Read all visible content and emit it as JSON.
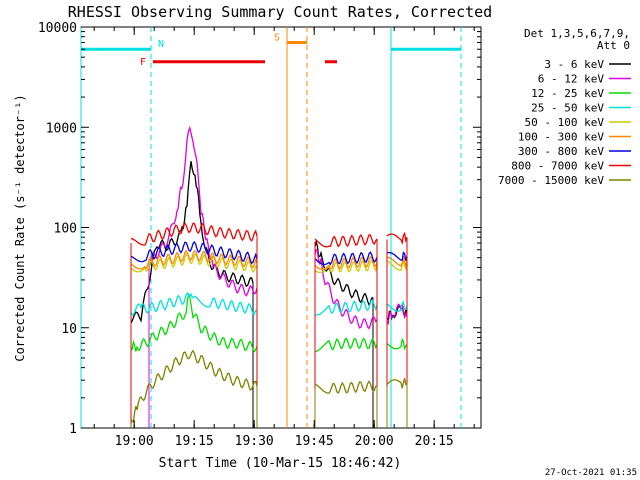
{
  "chart_data": {
    "type": "line",
    "title": "RHESSI Observing Summary Count Rates, Corrected",
    "xlabel": "Start Time (10-Mar-15 18:46:42)",
    "ylabel": "Corrected Count Rate (s⁻¹ detector⁻¹)",
    "yscale": "log",
    "ylim": [
      1,
      10000
    ],
    "xlim_minutes": [
      0,
      100
    ],
    "x_tick_minutes": [
      13.3,
      28.3,
      43.3,
      58.3,
      73.3,
      88.3
    ],
    "x_tick_labels": [
      "19:00",
      "19:15",
      "19:30",
      "19:45",
      "20:00",
      "20:15"
    ],
    "y_ticks": [
      1,
      10,
      100,
      1000,
      10000
    ],
    "y_tick_labels": [
      "1",
      "10",
      "100",
      "1000",
      "10000"
    ],
    "legend_header": [
      "Det 1,3,5,6,7,9,",
      "Att 0"
    ],
    "legend_position": "right",
    "series": [
      {
        "name": "3 - 6 keV",
        "color": "#000000",
        "segments": [
          [
            [
              12.5,
              12.5
            ],
            [
              15,
              13
            ],
            [
              17,
              30
            ],
            [
              19,
              70
            ],
            [
              21,
              65
            ],
            [
              23,
              70
            ],
            [
              25,
              85
            ],
            [
              26.5,
              160
            ],
            [
              27.5,
              450
            ],
            [
              28.5,
              350
            ],
            [
              30,
              120
            ],
            [
              31,
              60
            ],
            [
              33,
              40
            ],
            [
              36,
              33
            ],
            [
              40,
              30
            ],
            [
              43,
              28
            ]
          ],
          [
            [
              58.5,
              70
            ],
            [
              60,
              50
            ],
            [
              62,
              35
            ],
            [
              64,
              28
            ],
            [
              66,
              25
            ],
            [
              68,
              22
            ],
            [
              70,
              20
            ],
            [
              72,
              19
            ],
            [
              73,
              20
            ]
          ],
          [
            [
              76.5,
              13
            ],
            [
              78,
              14
            ],
            [
              80,
              15
            ],
            [
              81.5,
              14
            ]
          ]
        ]
      },
      {
        "name": "6 - 12 keV",
        "color": "#e000e0",
        "segments": [
          [
            [
              17,
              45
            ],
            [
              18,
              50
            ],
            [
              20,
              60
            ],
            [
              22,
              80
            ],
            [
              24,
              150
            ],
            [
              25.5,
              300
            ],
            [
              26.5,
              700
            ],
            [
              27.2,
              1100
            ],
            [
              28,
              800
            ],
            [
              29,
              400
            ],
            [
              30,
              150
            ],
            [
              31.5,
              70
            ],
            [
              33,
              40
            ],
            [
              36,
              30
            ],
            [
              39,
              25
            ],
            [
              42,
              23
            ],
            [
              44,
              25
            ]
          ],
          [
            [
              58.5,
              60
            ],
            [
              60,
              45
            ],
            [
              61,
              30
            ],
            [
              63,
              20
            ],
            [
              65,
              15
            ],
            [
              68,
              12
            ],
            [
              70,
              11
            ],
            [
              72,
              11
            ],
            [
              74,
              12
            ]
          ],
          [
            [
              76.5,
              12
            ],
            [
              78,
              14
            ],
            [
              80,
              16
            ],
            [
              81.5,
              13
            ]
          ]
        ]
      },
      {
        "name": "12 - 25 keV",
        "color": "#00dd00",
        "segments": [
          [
            [
              12.5,
              6.5
            ],
            [
              14,
              6.5
            ],
            [
              16,
              7
            ],
            [
              18,
              8
            ],
            [
              20,
              9
            ],
            [
              22,
              10
            ],
            [
              24,
              12
            ],
            [
              26,
              14
            ],
            [
              27.2,
              22
            ],
            [
              28,
              14
            ],
            [
              30,
              10
            ],
            [
              33,
              8
            ],
            [
              36,
              7
            ],
            [
              39,
              7
            ],
            [
              42,
              6.5
            ],
            [
              44,
              6.5
            ]
          ],
          [
            [
              58.5,
              6.5
            ],
            [
              62,
              6.7
            ],
            [
              66,
              7
            ],
            [
              70,
              7
            ],
            [
              74,
              6.8
            ]
          ],
          [
            [
              76.5,
              6.8
            ],
            [
              80,
              7
            ],
            [
              81.5,
              6.8
            ]
          ]
        ]
      },
      {
        "name": "25 - 50 keV",
        "color": "#00e0e0",
        "segments": [
          [
            [
              12.5,
              15
            ],
            [
              15,
              15.5
            ],
            [
              18,
              16
            ],
            [
              21,
              17
            ],
            [
              24,
              18.5
            ],
            [
              27,
              20
            ],
            [
              27.5,
              24
            ],
            [
              28.5,
              19
            ],
            [
              32,
              18
            ],
            [
              36,
              17
            ],
            [
              40,
              16
            ],
            [
              44,
              15
            ]
          ],
          [
            [
              58.5,
              15
            ],
            [
              62,
              15.5
            ],
            [
              66,
              16
            ],
            [
              70,
              16.5
            ],
            [
              74,
              17
            ]
          ],
          [
            [
              76.5,
              16
            ],
            [
              80,
              16.5
            ],
            [
              81.5,
              16.5
            ]
          ]
        ]
      },
      {
        "name": "50 - 100 keV",
        "color": "#cccc00",
        "segments": [
          [
            [
              12.5,
              40
            ],
            [
              16,
              41
            ],
            [
              20,
              43
            ],
            [
              24,
              46
            ],
            [
              27,
              49
            ],
            [
              30,
              48
            ],
            [
              34,
              45
            ],
            [
              38,
              43
            ],
            [
              42,
              41
            ],
            [
              44,
              40
            ]
          ],
          [
            [
              58.5,
              40
            ],
            [
              62,
              40
            ],
            [
              66,
              40.5
            ],
            [
              70,
              41
            ],
            [
              74,
              42
            ]
          ],
          [
            [
              76.5,
              42
            ],
            [
              80,
              42
            ],
            [
              81.5,
              43
            ]
          ]
        ]
      },
      {
        "name": "100 - 300 keV",
        "color": "#ff8800",
        "segments": [
          [
            [
              12.5,
              42
            ],
            [
              16,
              44
            ],
            [
              20,
              47
            ],
            [
              24,
              50
            ],
            [
              27,
              53
            ],
            [
              30,
              52
            ],
            [
              34,
              49
            ],
            [
              38,
              47
            ],
            [
              42,
              45
            ],
            [
              44,
              44
            ]
          ],
          [
            [
              58.5,
              43
            ],
            [
              62,
              43
            ],
            [
              66,
              44
            ],
            [
              70,
              45
            ],
            [
              74,
              46
            ]
          ],
          [
            [
              76.5,
              45
            ],
            [
              80,
              46
            ],
            [
              81.5,
              46
            ]
          ]
        ]
      },
      {
        "name": "300 - 800 keV",
        "color": "#0000dd",
        "segments": [
          [
            [
              12.5,
              48
            ],
            [
              16,
              52
            ],
            [
              20,
              57
            ],
            [
              24,
              62
            ],
            [
              27,
              65
            ],
            [
              30,
              63
            ],
            [
              34,
              58
            ],
            [
              38,
              54
            ],
            [
              42,
              50
            ],
            [
              44,
              48
            ]
          ],
          [
            [
              58.5,
              48
            ],
            [
              62,
              48
            ],
            [
              66,
              49
            ],
            [
              70,
              50
            ],
            [
              74,
              51
            ]
          ],
          [
            [
              76.5,
              50
            ],
            [
              80,
              51
            ],
            [
              81.5,
              52
            ]
          ]
        ]
      },
      {
        "name": "800 - 7000 keV",
        "color": "#ee0000",
        "segments": [
          [
            [
              12.5,
              70
            ],
            [
              16,
              75
            ],
            [
              20,
              85
            ],
            [
              24,
              95
            ],
            [
              27,
              100
            ],
            [
              30,
              98
            ],
            [
              34,
              90
            ],
            [
              38,
              86
            ],
            [
              42,
              83
            ],
            [
              44,
              82
            ]
          ],
          [
            [
              58.5,
              72
            ],
            [
              62,
              72
            ],
            [
              66,
              73
            ],
            [
              70,
              75
            ],
            [
              74,
              77
            ]
          ],
          [
            [
              76.5,
              76
            ],
            [
              80,
              78
            ],
            [
              81.5,
              80
            ]
          ]
        ]
      },
      {
        "name": "7000 - 15000 keV",
        "color": "#808000",
        "segments": [
          [
            [
              12.5,
              1.1
            ],
            [
              14,
              1.6
            ],
            [
              16,
              2.2
            ],
            [
              18,
              2.8
            ],
            [
              21,
              3.6
            ],
            [
              24,
              4.6
            ],
            [
              27,
              5.5
            ],
            [
              30,
              4.8
            ],
            [
              34,
              3.6
            ],
            [
              38,
              3.0
            ],
            [
              42,
              2.7
            ],
            [
              44,
              2.6
            ]
          ],
          [
            [
              58.5,
              2.5
            ],
            [
              62,
              2.5
            ],
            [
              66,
              2.5
            ],
            [
              70,
              2.6
            ],
            [
              74,
              2.6
            ]
          ],
          [
            [
              76.5,
              2.6
            ],
            [
              80,
              2.8
            ],
            [
              81.5,
              2.8
            ]
          ]
        ]
      }
    ],
    "flags": [
      {
        "label": "N",
        "color": "#00e0e0",
        "level": 6000,
        "segments": [
          [
            0,
            17.5
          ],
          [
            77.5,
            95
          ]
        ],
        "markers": [
          0,
          17.5,
          77.5,
          95
        ],
        "dashed": [
          17.5,
          95
        ]
      },
      {
        "label": "F",
        "color": "#ee0000",
        "level": 4500,
        "segments": [
          [
            18,
            46
          ],
          [
            61,
            64
          ]
        ],
        "markers": [],
        "dashed": []
      },
      {
        "label": "S",
        "color": "#ff8800",
        "level": 7000,
        "segments": [
          [
            51.5,
            56.5
          ]
        ],
        "markers": [
          51.5,
          56.5
        ],
        "dashed": [
          56.5
        ]
      }
    ],
    "footer": "27-Oct-2021 01:35"
  }
}
